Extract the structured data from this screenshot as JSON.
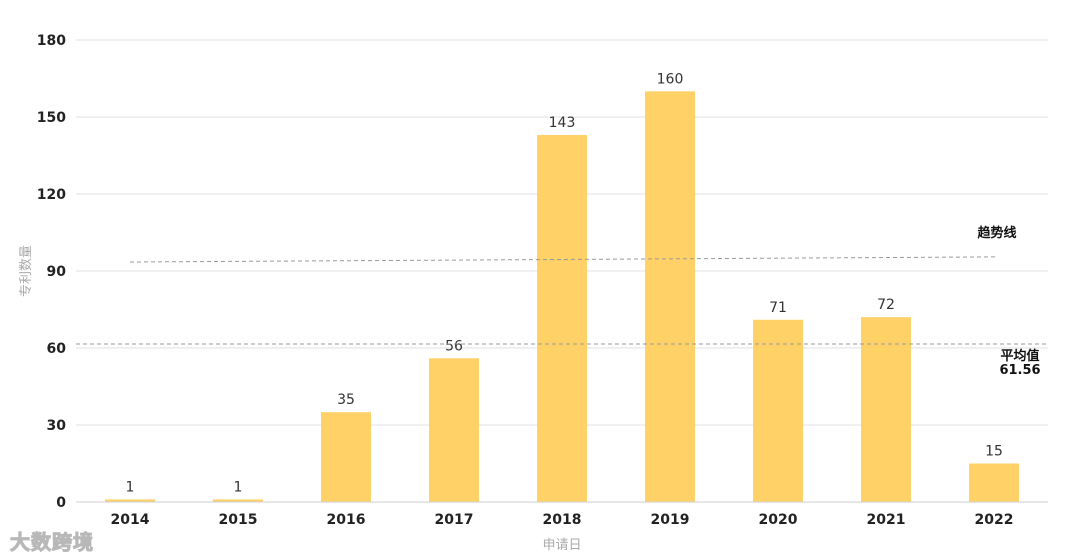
{
  "chart_data": {
    "type": "bar",
    "categories": [
      "2014",
      "2015",
      "2016",
      "2017",
      "2018",
      "2019",
      "2020",
      "2021",
      "2022"
    ],
    "values": [
      1,
      1,
      35,
      56,
      143,
      160,
      71,
      72,
      15
    ],
    "xlabel": "申请日",
    "ylabel": "专利数量",
    "ylim": [
      0,
      180
    ],
    "yticks": [
      0,
      30,
      60,
      90,
      120,
      150,
      180
    ],
    "grid": true,
    "bar_color": "#FFD166",
    "average": {
      "label": "平均值",
      "value": 61.56,
      "value_text": "61.56"
    },
    "trendline": {
      "label": "趋势线",
      "start": 93.5,
      "end": 95.5
    }
  },
  "watermark": "大数跨境"
}
